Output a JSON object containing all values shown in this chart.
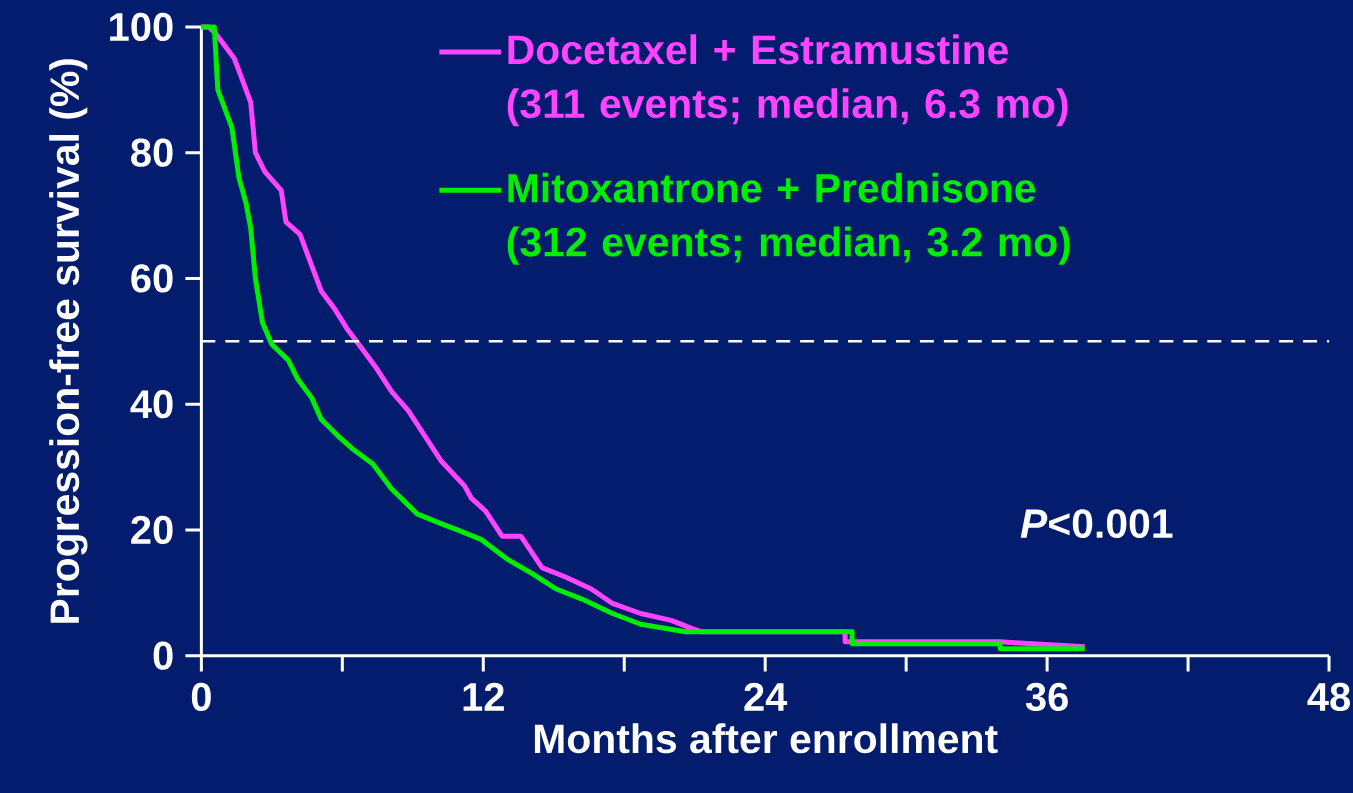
{
  "chart_data": {
    "type": "line",
    "xlabel": "Months after enrollment",
    "ylabel": "Progression-free survival (%)",
    "xlim": [
      0,
      48
    ],
    "ylim": [
      0,
      100
    ],
    "xticks": [
      0,
      12,
      24,
      36,
      48,
      {
        "value": 6,
        "label": null
      },
      {
        "value": 18,
        "label": null
      },
      {
        "value": 30,
        "label": null
      },
      {
        "value": 42,
        "label": null
      }
    ],
    "yticks": [
      0,
      20,
      40,
      60,
      80,
      100
    ],
    "legend": "top",
    "marker": "none",
    "line_style": "solid",
    "ref_lines": [
      {
        "axis": "y",
        "value": 50,
        "label": null,
        "color": "#ffffff",
        "line_style": "dashed"
      }
    ],
    "annotations": [
      "*P*<0.001"
    ],
    "series": [
      {
        "name": "Docetaxel + Estramustine (311 events; median, 6.3 mo)",
        "color": "#ff44ff",
        "x": [
          0,
          0.3,
          0.6,
          1.0,
          1.4,
          1.7,
          2.1,
          2.3,
          2.7,
          3.4,
          3.6,
          4.2,
          4.7,
          5.1,
          5.7,
          6.2,
          6.8,
          7.4,
          8.1,
          8.8,
          10.2,
          11.2,
          11.5,
          12.1,
          12.8,
          13.6,
          14.5,
          15.5,
          16.6,
          17.5,
          18.7,
          20.0,
          20.9,
          21.3,
          27.4,
          27.4,
          34.0,
          37.6
        ],
        "values": [
          100,
          100,
          99,
          97,
          95,
          92,
          88,
          80,
          77,
          74,
          69,
          67,
          62,
          58,
          55,
          52,
          49,
          46,
          42,
          39,
          31,
          27,
          25,
          23,
          19,
          19,
          14,
          12.5,
          10.6,
          8.3,
          6.7,
          5.6,
          4.3,
          3.8,
          3.8,
          2.2,
          2.2,
          1.4
        ]
      },
      {
        "name": "Mitoxantrone + Prednisone (312 events; median, 3.2 mo)",
        "color": "#00ee00",
        "x": [
          0,
          0.55,
          0.7,
          1.0,
          1.3,
          1.6,
          1.9,
          2.1,
          2.3,
          2.6,
          3.0,
          3.7,
          4.1,
          4.7,
          5.1,
          5.8,
          6.4,
          7.3,
          8.1,
          9.2,
          10.2,
          10.9,
          11.9,
          13.0,
          14.1,
          15.1,
          16.2,
          17.5,
          18.7,
          20.6,
          27.7,
          27.7,
          34.0,
          34.0,
          37.6
        ],
        "values": [
          100,
          100,
          90,
          87,
          84,
          76,
          72,
          68,
          60,
          53,
          49.5,
          47,
          44,
          41,
          37.6,
          35,
          33,
          30.5,
          26.5,
          22.5,
          21,
          20,
          18.5,
          15.4,
          13,
          10.6,
          9,
          6.7,
          5,
          3.8,
          3.8,
          1.9,
          1.9,
          1.1,
          1.1
        ]
      }
    ]
  }
}
